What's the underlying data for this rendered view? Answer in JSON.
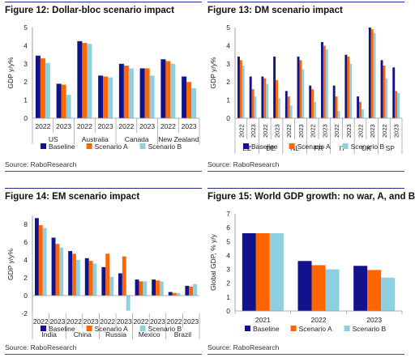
{
  "colors": {
    "Baseline": "#12128c",
    "Scenario A": "#ff6600",
    "Scenario B": "#8fd0e0",
    "title_rule": "#1f2f8f"
  },
  "panels": [
    {
      "title": "Figure 12: Dollar-bloc scenario impact",
      "source": "Source: RaboResearch",
      "chart_data": {
        "type": "bar",
        "ylabel": "GDP y/y%",
        "ylim": [
          0,
          5
        ],
        "yticks": [
          0,
          1,
          2,
          3,
          4,
          5
        ],
        "years": [
          "2022",
          "2023"
        ],
        "groups": [
          "US",
          "Australia",
          "Canada",
          "New Zealand"
        ],
        "series": [
          {
            "name": "Baseline",
            "values": [
              3.45,
              1.9,
              4.25,
              2.35,
              3.0,
              2.75,
              3.25,
              2.3
            ]
          },
          {
            "name": "Scenario A",
            "values": [
              3.3,
              1.85,
              4.15,
              2.3,
              2.9,
              2.75,
              3.15,
              2.0
            ]
          },
          {
            "name": "Scenario B",
            "values": [
              3.05,
              1.3,
              4.1,
              2.25,
              2.75,
              2.35,
              3.0,
              1.65
            ]
          }
        ],
        "legend": "bottom"
      }
    },
    {
      "title": "Figure 13: DM scenario impact",
      "source": "Source: RaboResearch",
      "chart_data": {
        "type": "bar",
        "ylabel": "GDP y/y%",
        "ylim": [
          0,
          5
        ],
        "yticks": [
          0,
          1,
          2,
          3,
          4,
          5
        ],
        "years": [
          "2022",
          "2023"
        ],
        "groups": [
          "EZ",
          "DE",
          "NL",
          "FR",
          "IT",
          "UK",
          "SP"
        ],
        "series": [
          {
            "name": "Baseline",
            "values": [
              3.4,
              2.3,
              2.3,
              3.4,
              1.5,
              3.4,
              1.8,
              4.2,
              1.8,
              3.5,
              1.2,
              5.0,
              3.2,
              2.8
            ]
          },
          {
            "name": "Scenario A",
            "values": [
              3.2,
              1.6,
              2.2,
              2.1,
              1.2,
              3.2,
              1.6,
              4.0,
              1.2,
              3.4,
              0.9,
              4.9,
              2.9,
              1.5
            ]
          },
          {
            "name": "Scenario B",
            "values": [
              2.9,
              1.2,
              1.9,
              1.1,
              0.7,
              2.7,
              0.9,
              3.8,
              0.4,
              3.0,
              0.5,
              4.7,
              2.2,
              1.4
            ]
          }
        ],
        "legend": "bottom"
      }
    },
    {
      "title": "Figure 14: EM scenario impact",
      "source": "Source: RaboResearch",
      "chart_data": {
        "type": "bar",
        "ylabel": "GDP y/y%",
        "ylim": [
          -2,
          9
        ],
        "yticks": [
          -2,
          0,
          2,
          4,
          6,
          8
        ],
        "years": [
          "2022",
          "2023"
        ],
        "groups": [
          "India",
          "China",
          "Russia",
          "Mexico",
          "Brazil"
        ],
        "series": [
          {
            "name": "Baseline",
            "values": [
              8.7,
              6.5,
              5.0,
              4.2,
              3.2,
              2.5,
              1.8,
              1.8,
              0.4,
              1.1
            ]
          },
          {
            "name": "Scenario A",
            "values": [
              7.9,
              5.8,
              4.7,
              3.9,
              4.7,
              4.4,
              1.6,
              1.7,
              0.3,
              1.0
            ]
          },
          {
            "name": "Scenario B",
            "values": [
              7.6,
              5.4,
              4.0,
              3.6,
              2.1,
              -1.7,
              1.6,
              1.6,
              0.3,
              1.3
            ]
          }
        ],
        "legend": "bottom"
      }
    },
    {
      "title": "Figure 15: World GDP growth: no war, A, and B",
      "source": "Source: RaboResearch",
      "chart_data": {
        "type": "bar",
        "ylabel": "Global GDP, % y/y",
        "ylim": [
          0,
          7
        ],
        "yticks": [
          0,
          1,
          2,
          3,
          4,
          5,
          6,
          7
        ],
        "categories": [
          "2021",
          "2022",
          "2023"
        ],
        "series": [
          {
            "name": "Baseline",
            "values": [
              5.6,
              3.6,
              3.25
            ]
          },
          {
            "name": "Scenario A",
            "values": [
              5.6,
              3.3,
              2.95
            ]
          },
          {
            "name": "Scenario B",
            "values": [
              5.6,
              3.0,
              2.4
            ]
          }
        ],
        "legend": "bottom"
      }
    }
  ]
}
